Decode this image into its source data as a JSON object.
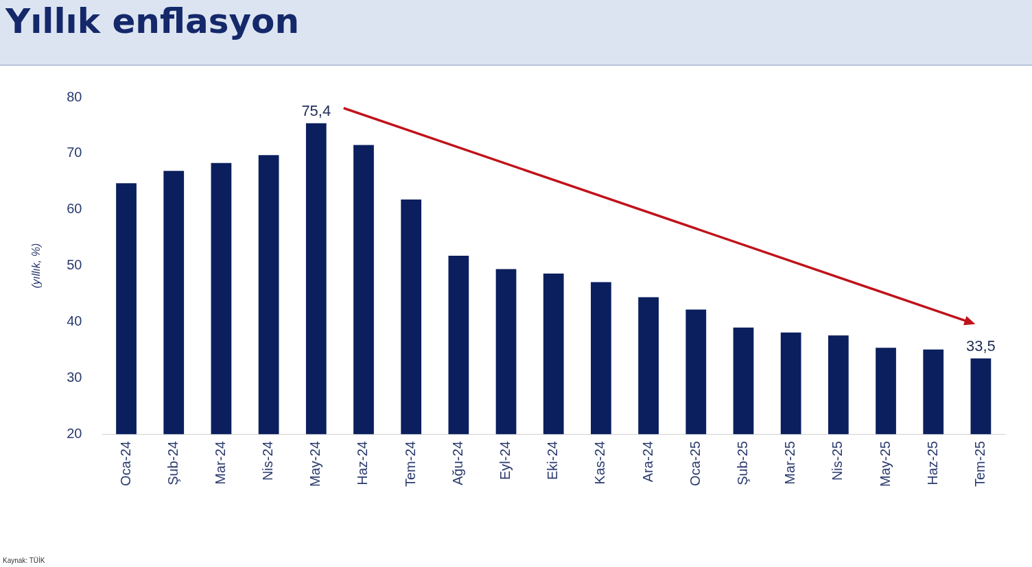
{
  "chart_data": {
    "type": "bar",
    "title": "Yıllık enflasyon",
    "ylabel": "(yıllık, %)",
    "categories": [
      "Oca-24",
      "Şub-24",
      "Mar-24",
      "Nis-24",
      "May-24",
      "Haz-24",
      "Tem-24",
      "Ağu-24",
      "Eyl-24",
      "Eki-24",
      "Kas-24",
      "Ara-24",
      "Oca-25",
      "Şub-25",
      "Mar-25",
      "Nis-25",
      "May-25",
      "Haz-25",
      "Tem-25"
    ],
    "values": [
      64.7,
      66.9,
      68.3,
      69.7,
      75.4,
      71.5,
      61.8,
      51.8,
      49.4,
      48.6,
      47.1,
      44.4,
      42.2,
      39.0,
      38.1,
      37.6,
      35.4,
      35.1,
      33.5
    ],
    "value_labels": [
      null,
      null,
      null,
      null,
      "75,4",
      null,
      null,
      null,
      null,
      null,
      null,
      null,
      null,
      null,
      null,
      null,
      null,
      null,
      "33,5"
    ],
    "color": "#0b1f5e",
    "ylim": [
      20,
      80
    ],
    "yticks": [
      20,
      30,
      40,
      50,
      60,
      70,
      80
    ],
    "grid": false,
    "legend": false,
    "annotations": [
      "Kaynak: TÜİK"
    ]
  }
}
